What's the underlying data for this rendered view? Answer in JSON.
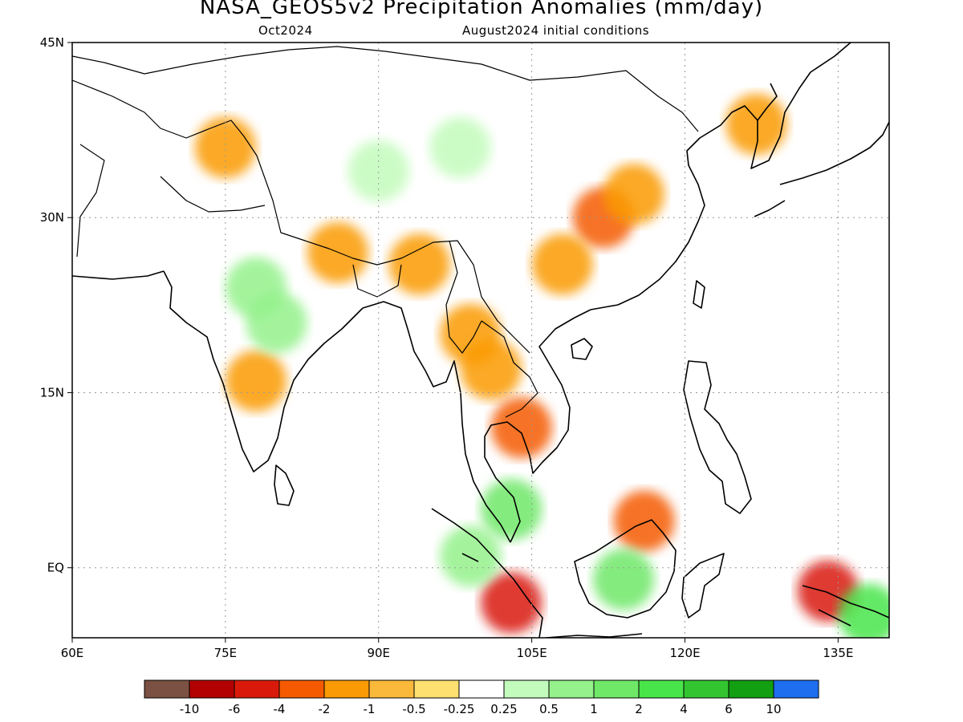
{
  "title": "NASA_GEOS5v2 Precipitation Anomalies (mm/day)",
  "subtitle_left": "Oct2024",
  "subtitle_right": "August2024 initial conditions",
  "map": {
    "lon_range": [
      60,
      140
    ],
    "lat_range": [
      -6,
      45
    ],
    "lat_ticks": [
      {
        "value": 45,
        "label": "45N"
      },
      {
        "value": 30,
        "label": "30N"
      },
      {
        "value": 15,
        "label": "15N"
      },
      {
        "value": 0,
        "label": "EQ"
      }
    ],
    "lon_ticks": [
      {
        "value": 60,
        "label": "60E"
      },
      {
        "value": 75,
        "label": "75E"
      },
      {
        "value": 90,
        "label": "90E"
      },
      {
        "value": 105,
        "label": "105E"
      },
      {
        "value": 120,
        "label": "120E"
      },
      {
        "value": 135,
        "label": "135E"
      }
    ],
    "grid": "dotted"
  },
  "colorbar": {
    "colors": [
      "#7a5142",
      "#b30000",
      "#d91a0a",
      "#f55a00",
      "#fa9a05",
      "#fbb93b",
      "#fde06f",
      "#ffffff",
      "#c3fbbc",
      "#94f18b",
      "#6fe868",
      "#48e54a",
      "#32c530",
      "#129f12",
      "#1f6ef0"
    ],
    "labels": [
      "-10",
      "-6",
      "-4",
      "-2",
      "-1",
      "-0.5",
      "-0.25",
      "0.25",
      "0.5",
      "1",
      "2",
      "4",
      "6",
      "10"
    ]
  },
  "anomalies": [
    {
      "lon": 86,
      "lat": 27,
      "value": -1
    },
    {
      "lon": 94,
      "lat": 26,
      "value": -1
    },
    {
      "lon": 99,
      "lat": 20,
      "value": -1
    },
    {
      "lon": 101,
      "lat": 17,
      "value": -1
    },
    {
      "lon": 112,
      "lat": 30,
      "value": -2
    },
    {
      "lon": 108,
      "lat": 26,
      "value": -1
    },
    {
      "lon": 115,
      "lat": 32,
      "value": -1
    },
    {
      "lon": 78,
      "lat": 16,
      "value": -1
    },
    {
      "lon": 104,
      "lat": 12,
      "value": -2
    },
    {
      "lon": 103,
      "lat": -3,
      "value": -4
    },
    {
      "lon": 116,
      "lat": 4,
      "value": -2
    },
    {
      "lon": 127,
      "lat": 38,
      "value": -1
    },
    {
      "lon": 134,
      "lat": -2,
      "value": -4
    },
    {
      "lon": 75,
      "lat": 36,
      "value": -1
    },
    {
      "lon": 98,
      "lat": 36,
      "value": 0.5
    },
    {
      "lon": 90,
      "lat": 34,
      "value": 0.5
    },
    {
      "lon": 78,
      "lat": 24,
      "value": 1
    },
    {
      "lon": 80,
      "lat": 21,
      "value": 1
    },
    {
      "lon": 114,
      "lat": -1,
      "value": 2
    },
    {
      "lon": 103,
      "lat": 5,
      "value": 2
    },
    {
      "lon": 99,
      "lat": 1,
      "value": 1
    },
    {
      "lon": 138,
      "lat": -4,
      "value": 4
    }
  ]
}
